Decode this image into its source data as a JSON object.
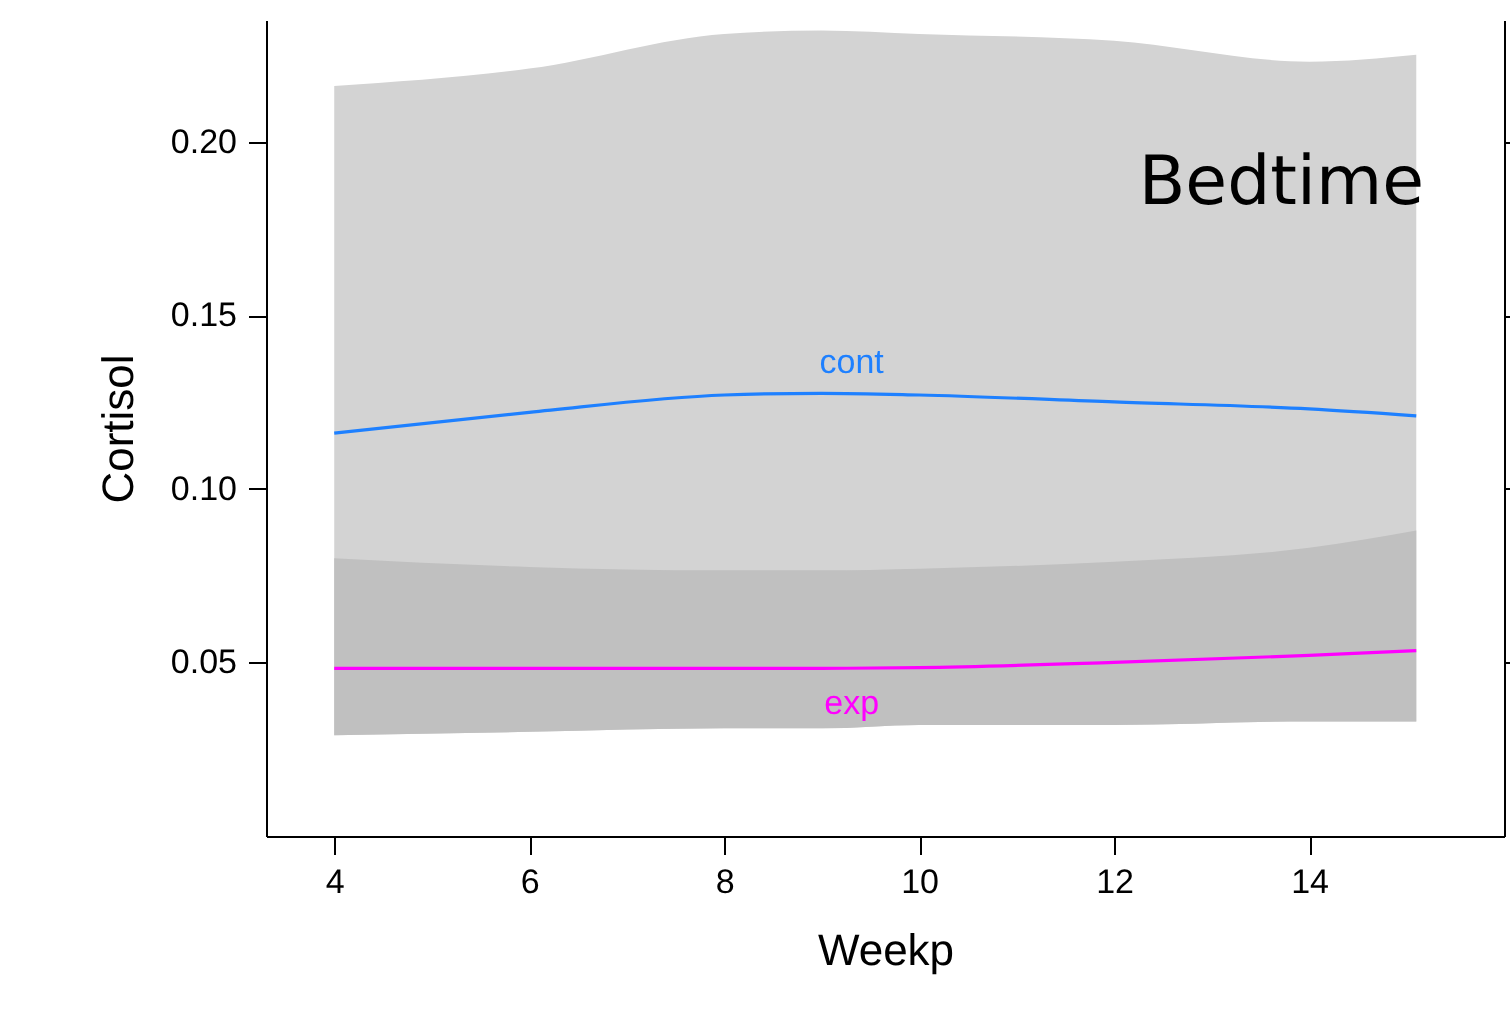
{
  "chart_data": {
    "type": "line",
    "xlabel": "Weekp",
    "ylabel": "Cortisol",
    "annotations": [
      "Bedtime"
    ],
    "xlim": [
      3.3,
      16.0
    ],
    "xticks": [
      4,
      6,
      8,
      10,
      12,
      14
    ],
    "ylim": [
      0,
      0.235
    ],
    "yticks": [
      {
        "value": 0.05,
        "label": "0.05"
      },
      {
        "value": 0.1,
        "label": "0.10"
      },
      {
        "value": 0.15,
        "label": "0.15"
      },
      {
        "value": 0.2,
        "label": "0.20"
      }
    ],
    "grid": false,
    "marker": "none",
    "line_style": "solid",
    "series": [
      {
        "name": "cont",
        "color": "#1e80ff",
        "x": [
          4,
          6,
          8,
          9,
          10,
          12,
          14,
          15.1
        ],
        "values": [
          0.116,
          0.122,
          0.127,
          0.1275,
          0.127,
          0.125,
          0.123,
          0.121
        ],
        "lower": [
          0.029,
          0.03,
          0.031,
          0.031,
          0.032,
          0.032,
          0.033,
          0.033
        ],
        "upper": [
          0.216,
          0.221,
          0.231,
          0.232,
          0.231,
          0.229,
          0.223,
          0.225
        ]
      },
      {
        "name": "exp",
        "color": "#ff00ff",
        "x": [
          4,
          6,
          8,
          9,
          10,
          12,
          14,
          15.1
        ],
        "values": [
          0.0483,
          0.0483,
          0.0483,
          0.0483,
          0.0485,
          0.05,
          0.052,
          0.0534
        ],
        "lower": [
          0.029,
          0.03,
          0.031,
          0.031,
          0.032,
          0.032,
          0.033,
          0.033
        ],
        "upper": [
          0.08,
          0.0775,
          0.0765,
          0.0765,
          0.077,
          0.079,
          0.083,
          0.088
        ]
      }
    ]
  }
}
